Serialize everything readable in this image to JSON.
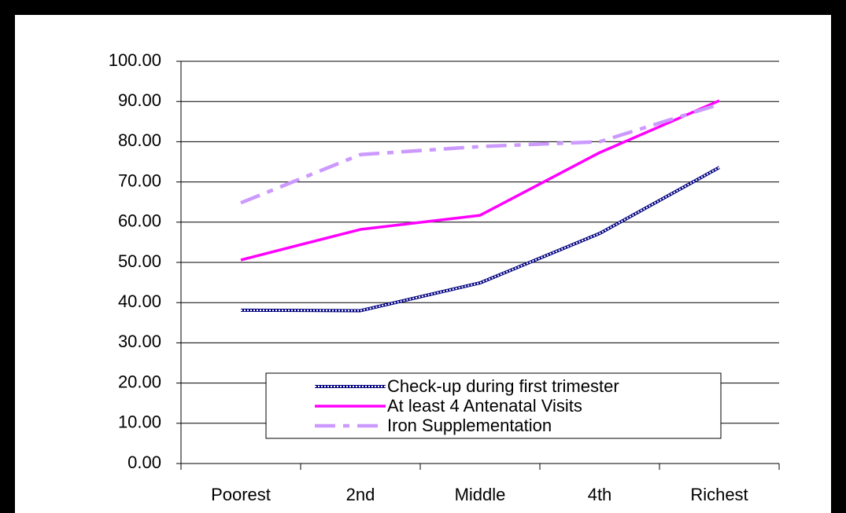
{
  "chart_data": {
    "type": "line",
    "categories": [
      "Poorest",
      "2nd",
      "Middle",
      "4th",
      "Richest"
    ],
    "series": [
      {
        "name": "Check-up during first trimester",
        "color": "#000080",
        "line_style": "dotted",
        "values": [
          38.1,
          38.0,
          44.9,
          57.2,
          73.6
        ]
      },
      {
        "name": "At least 4 Antenatal Visits",
        "color": "#ff00ff",
        "line_style": "solid",
        "values": [
          50.6,
          58.2,
          61.7,
          77.3,
          90.2
        ]
      },
      {
        "name": "Iron Supplementation",
        "color": "#cc99ff",
        "line_style": "dashdot",
        "values": [
          64.8,
          76.8,
          78.8,
          80.0,
          89.3
        ]
      }
    ],
    "ylim": [
      0,
      100
    ],
    "yticks": [
      {
        "value": 0,
        "label": "0.00"
      },
      {
        "value": 10,
        "label": "10.00"
      },
      {
        "value": 20,
        "label": "20.00"
      },
      {
        "value": 30,
        "label": "30.00"
      },
      {
        "value": 40,
        "label": "40.00"
      },
      {
        "value": 50,
        "label": "50.00"
      },
      {
        "value": 60,
        "label": "60.00"
      },
      {
        "value": 70,
        "label": "70.00"
      },
      {
        "value": 80,
        "label": "80.00"
      },
      {
        "value": 90,
        "label": "90.00"
      },
      {
        "value": 100,
        "label": "100.00"
      }
    ],
    "grid": true
  }
}
